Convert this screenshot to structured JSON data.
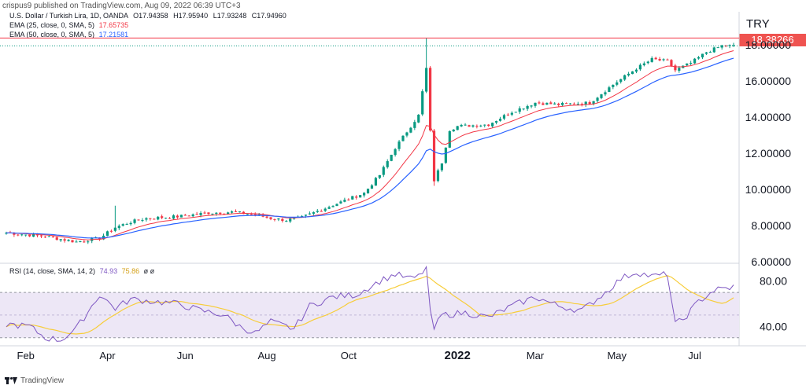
{
  "header": {
    "publisher": "crispus9 published on TradingView.com, Aug 09, 2022 06:39 UTC+3"
  },
  "legend": {
    "symbol": "U.S. Dollar / Turkish Lira, 1D, OANDA",
    "open": "O17.94358",
    "high": "H17.95940",
    "low": "L17.93248",
    "close": "C17.94960",
    "ema25_label": "EMA (25, close, 0, SMA, 5)",
    "ema25_value": "17.65735",
    "ema50_label": "EMA (50, close, 0, SMA, 5)",
    "ema50_value": "17.21581",
    "rsi_label": "RSI (14, close, SMA, 14, 2)",
    "rsi_value": "74.93",
    "rsi_sma_value": "75.86",
    "rsi_extra": "ø ø"
  },
  "currency": "TRY",
  "last_price_tag": "18.38266",
  "footer": {
    "brand": "TradingView"
  },
  "colors": {
    "up": "#089981",
    "down": "#f23645",
    "ema25": "#f23645",
    "ema50": "#2962ff",
    "rsi": "#7e57c2",
    "rsi_sma": "#f7cd3a",
    "rsi_band": "#ede7f6",
    "price_tag": "#ef5350"
  },
  "chart_data": [
    {
      "type": "candlestick",
      "title": "U.S. Dollar / Turkish Lira, 1D, OANDA",
      "x_ticks": [
        "Feb",
        "Apr",
        "Jun",
        "Aug",
        "Oct",
        "2022",
        "Mar",
        "May",
        "Jul"
      ],
      "y_ticks": [
        "6.00000",
        "8.00000",
        "10.00000",
        "12.00000",
        "14.00000",
        "16.00000",
        "18.00000"
      ],
      "ylim": [
        6.0,
        18.4
      ],
      "horizontal_line": 18.38266,
      "grid": false,
      "anchors": [
        [
          0,
          7.6
        ],
        [
          10,
          7.4
        ],
        [
          18,
          7.1
        ],
        [
          24,
          7.3
        ],
        [
          28,
          7.9
        ],
        [
          32,
          8.2
        ],
        [
          36,
          8.4
        ],
        [
          44,
          8.5
        ],
        [
          52,
          8.7
        ],
        [
          58,
          8.75
        ],
        [
          64,
          8.6
        ],
        [
          68,
          8.4
        ],
        [
          72,
          8.3
        ],
        [
          76,
          8.45
        ],
        [
          80,
          8.8
        ],
        [
          86,
          9.3
        ],
        [
          92,
          9.8
        ],
        [
          96,
          10.8
        ],
        [
          100,
          12.3
        ],
        [
          104,
          13.5
        ],
        [
          106,
          14.1
        ],
        [
          108,
          16.7
        ],
        [
          109,
          13.2
        ],
        [
          110,
          10.5
        ],
        [
          112,
          11.5
        ],
        [
          114,
          13.3
        ],
        [
          116,
          13.5
        ],
        [
          124,
          13.6
        ],
        [
          130,
          14.3
        ],
        [
          136,
          14.8
        ],
        [
          142,
          14.7
        ],
        [
          150,
          14.8
        ],
        [
          156,
          15.8
        ],
        [
          162,
          16.7
        ],
        [
          166,
          17.2
        ],
        [
          170,
          17.1
        ],
        [
          172,
          16.6
        ],
        [
          176,
          17.0
        ],
        [
          180,
          17.6
        ],
        [
          184,
          17.95
        ],
        [
          187,
          17.95
        ]
      ],
      "series": [
        {
          "name": "EMA (25, close, 0, SMA, 5)",
          "last": 17.65735
        },
        {
          "name": "EMA (50, close, 0, SMA, 5)",
          "last": 17.21581
        }
      ]
    },
    {
      "type": "line",
      "title": "RSI (14, close, SMA, 14, 2)",
      "y_ticks": [
        "40.00",
        "80.00"
      ],
      "ylim": [
        25,
        95
      ],
      "band": [
        30,
        70
      ],
      "anchors": [
        [
          0,
          42
        ],
        [
          6,
          40
        ],
        [
          10,
          30
        ],
        [
          14,
          28
        ],
        [
          18,
          38
        ],
        [
          24,
          68
        ],
        [
          26,
          62
        ],
        [
          28,
          56
        ],
        [
          32,
          64
        ],
        [
          38,
          62
        ],
        [
          44,
          60
        ],
        [
          50,
          54
        ],
        [
          56,
          50
        ],
        [
          60,
          40
        ],
        [
          64,
          34
        ],
        [
          68,
          44
        ],
        [
          74,
          38
        ],
        [
          78,
          58
        ],
        [
          84,
          66
        ],
        [
          90,
          68
        ],
        [
          96,
          80
        ],
        [
          100,
          86
        ],
        [
          104,
          82
        ],
        [
          106,
          84
        ],
        [
          108,
          92
        ],
        [
          109,
          52
        ],
        [
          110,
          38
        ],
        [
          112,
          50
        ],
        [
          118,
          52
        ],
        [
          124,
          48
        ],
        [
          130,
          58
        ],
        [
          136,
          66
        ],
        [
          142,
          58
        ],
        [
          148,
          54
        ],
        [
          154,
          70
        ],
        [
          158,
          82
        ],
        [
          162,
          88
        ],
        [
          166,
          84
        ],
        [
          170,
          86
        ],
        [
          172,
          42
        ],
        [
          174,
          46
        ],
        [
          178,
          62
        ],
        [
          182,
          72
        ],
        [
          186,
          74
        ],
        [
          187,
          75
        ]
      ],
      "series": [
        {
          "name": "RSI (14, close, SMA, 14, 2)",
          "last": 74.93
        },
        {
          "name": "SMA",
          "last": 75.86
        }
      ]
    }
  ]
}
